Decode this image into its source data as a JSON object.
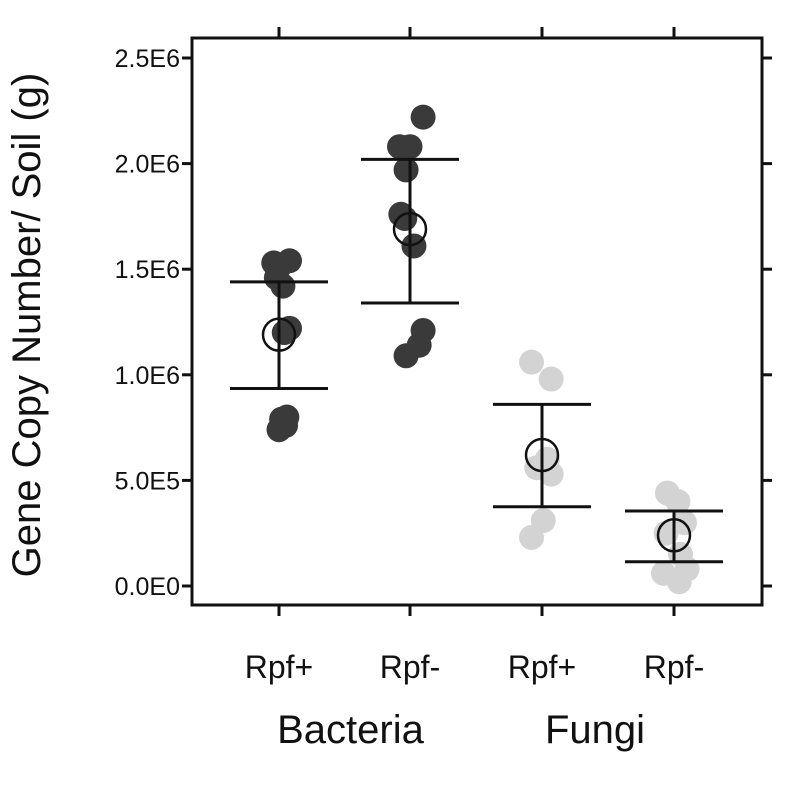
{
  "chart_data": {
    "type": "scatter",
    "ylabel": "Gene Copy Number/ Soil (g)",
    "xlabel": "",
    "ylim": [
      -70000,
      2600000
    ],
    "yticks": [
      0,
      500000,
      1000000,
      1500000,
      2000000,
      2500000
    ],
    "ytick_labels": [
      "0.0E0",
      "5.0E5",
      "1.0E6",
      "1.5E6",
      "2.0E6",
      "2.5E6"
    ],
    "categories": [
      "Rpf+",
      "Rpf-",
      "Rpf+",
      "Rpf-"
    ],
    "groups": [
      {
        "label": "Bacteria",
        "categories": [
          0,
          1
        ]
      },
      {
        "label": "Fungi",
        "categories": [
          2,
          3
        ]
      }
    ],
    "point_colors": [
      "#3a3a3a",
      "#3a3a3a",
      "#d3d3d3",
      "#d3d3d3"
    ],
    "series": [
      {
        "category": "Rpf+",
        "group": "Bacteria",
        "points": [
          [
            -0.04,
            1530000
          ],
          [
            0.08,
            1540000
          ],
          [
            0.0,
            1510000
          ],
          [
            -0.02,
            1460000
          ],
          [
            0.03,
            1420000
          ],
          [
            0.08,
            1220000
          ],
          [
            0.04,
            1200000
          ],
          [
            0.06,
            800000
          ],
          [
            0.02,
            790000
          ],
          [
            0.0,
            740000
          ],
          [
            0.05,
            760000
          ]
        ],
        "mean": 1190000,
        "upper": 1440000,
        "lower": 935000
      },
      {
        "category": "Rpf-",
        "group": "Bacteria",
        "points": [
          [
            0.1,
            2220000
          ],
          [
            -0.08,
            2080000
          ],
          [
            0.0,
            2080000
          ],
          [
            -0.03,
            1970000
          ],
          [
            -0.07,
            1760000
          ],
          [
            -0.04,
            1740000
          ],
          [
            0.03,
            1610000
          ],
          [
            0.1,
            1210000
          ],
          [
            0.07,
            1140000
          ],
          [
            -0.03,
            1090000
          ]
        ],
        "mean": 1690000,
        "upper": 2020000,
        "lower": 1340000
      },
      {
        "category": "Rpf+",
        "group": "Fungi",
        "points": [
          [
            -0.08,
            1060000
          ],
          [
            0.07,
            980000
          ],
          [
            0.04,
            600000
          ],
          [
            0.07,
            530000
          ],
          [
            -0.04,
            560000
          ],
          [
            0.01,
            310000
          ],
          [
            -0.08,
            230000
          ]
        ],
        "mean": 620000,
        "upper": 860000,
        "lower": 375000
      },
      {
        "category": "Rpf-",
        "group": "Fungi",
        "points": [
          [
            -0.05,
            440000
          ],
          [
            0.03,
            400000
          ],
          [
            0.08,
            300000
          ],
          [
            -0.06,
            250000
          ],
          [
            0.05,
            150000
          ],
          [
            0.1,
            80000
          ],
          [
            -0.08,
            60000
          ],
          [
            0.04,
            20000
          ]
        ],
        "mean": 240000,
        "upper": 355000,
        "lower": 115000
      }
    ]
  }
}
